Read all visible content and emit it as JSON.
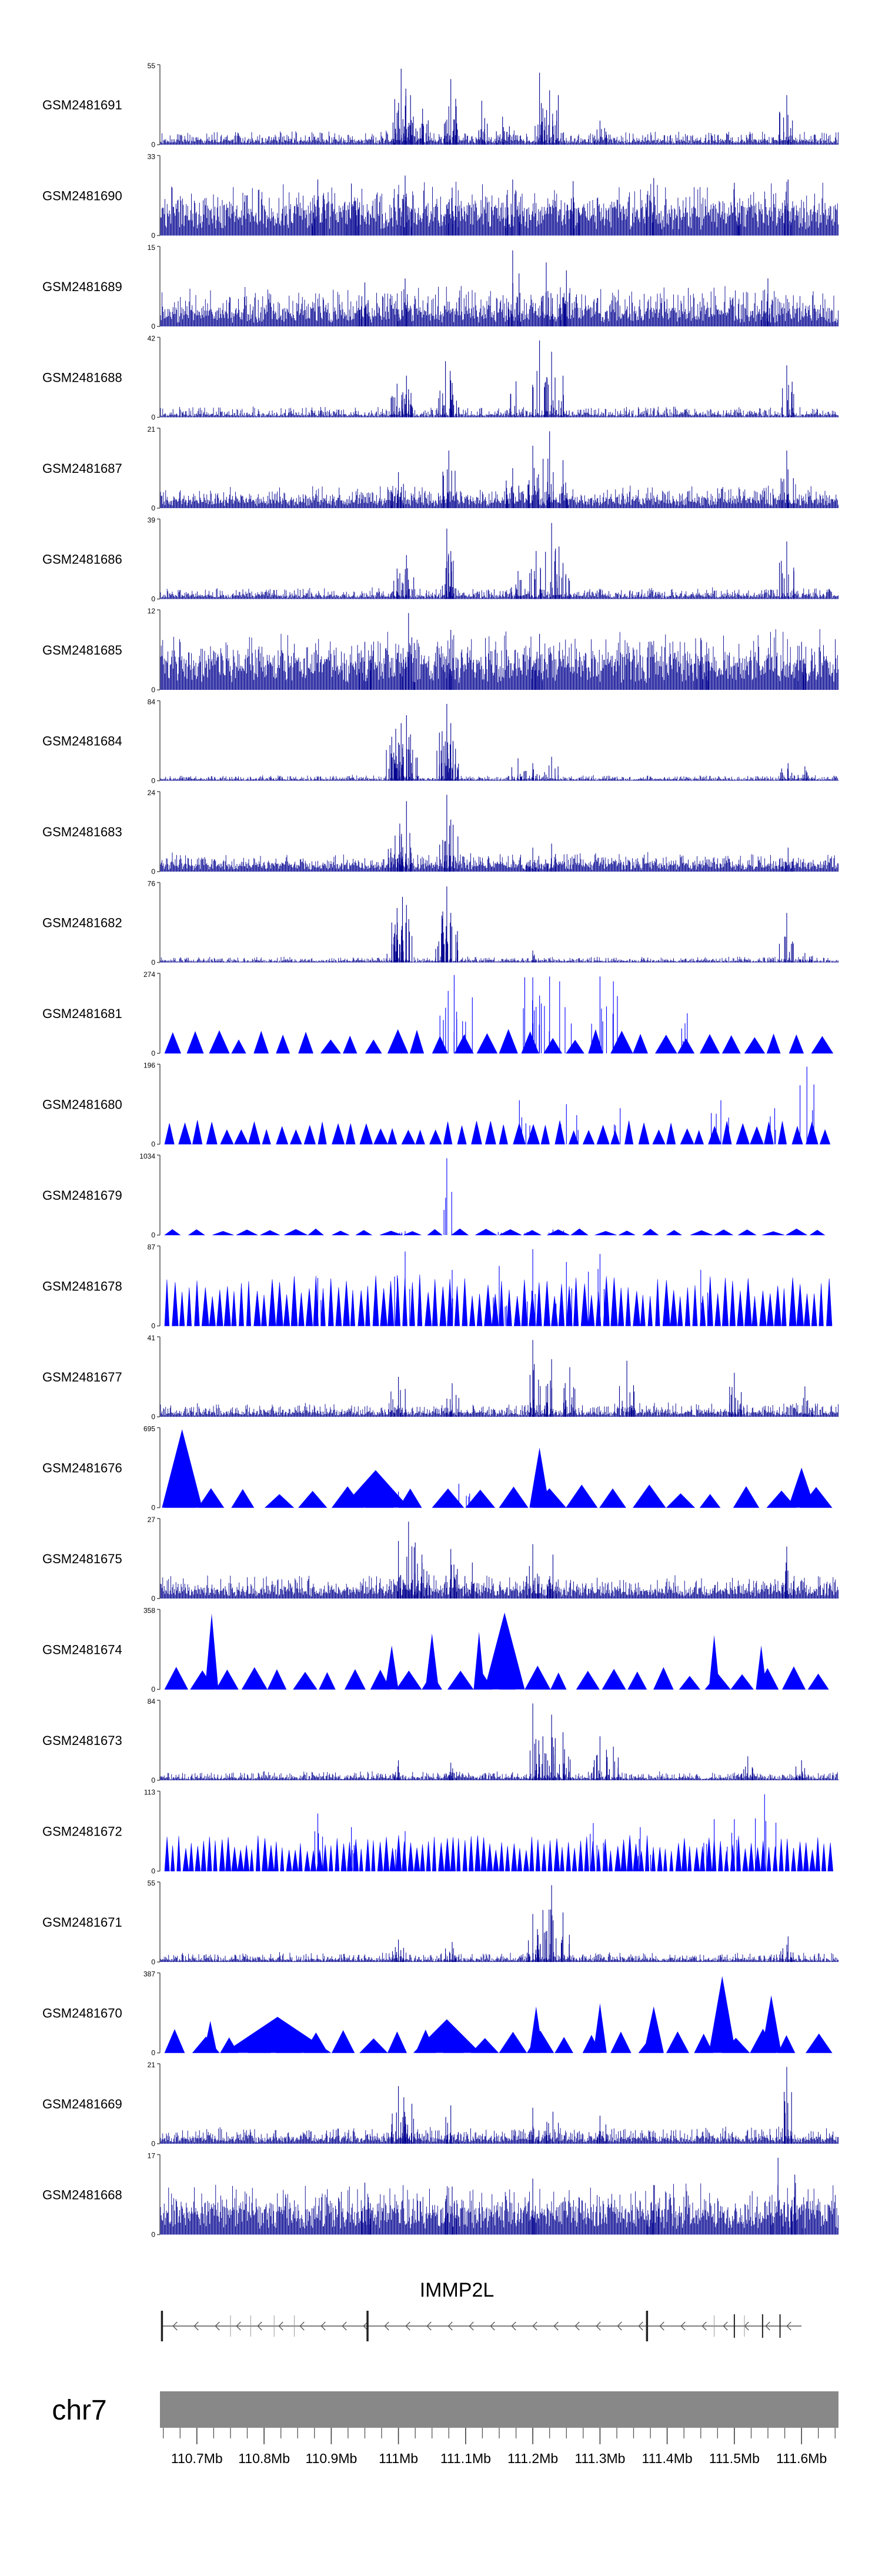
{
  "chart_data": {
    "type": "area",
    "chromosome_label": "chr7",
    "gene_label": "IMMP2L",
    "x_range_mb": [
      110.645,
      111.655
    ],
    "x_tick_labels": [
      "110.7Mb",
      "110.8Mb",
      "110.9Mb",
      "111Mb",
      "111.1Mb",
      "111.2Mb",
      "111.3Mb",
      "111.4Mb",
      "111.5Mb",
      "111.6Mb"
    ],
    "x_tick_values": [
      110.7,
      110.8,
      110.9,
      111.0,
      111.1,
      111.2,
      111.3,
      111.4,
      111.5,
      111.6
    ],
    "colors": {
      "signal": "#000090",
      "signal_sparse": "#0000ff",
      "chrom": "#888888",
      "gene": "#555555"
    },
    "tracks": [
      {
        "name": "GSM2481691",
        "ymax": 55,
        "style": "dense",
        "seed": 11,
        "base": 0.05,
        "noise": 0.12,
        "peaks": [
          [
            111.004,
            0.95
          ],
          [
            111.011,
            0.7
          ],
          [
            111.018,
            0.62
          ],
          [
            111.036,
            0.45
          ],
          [
            111.078,
            0.82
          ],
          [
            111.086,
            0.48
          ],
          [
            111.124,
            0.55
          ],
          [
            111.155,
            0.35
          ],
          [
            111.21,
            0.9
          ],
          [
            111.225,
            0.68
          ],
          [
            111.238,
            0.62
          ],
          [
            111.578,
            0.62
          ],
          [
            110.998,
            0.4
          ],
          [
            111.3,
            0.3
          ]
        ]
      },
      {
        "name": "GSM2481690",
        "ymax": 33,
        "style": "dense",
        "seed": 12,
        "base": 0.3,
        "noise": 0.32,
        "peaks": [
          [
            110.88,
            0.7
          ],
          [
            110.93,
            0.65
          ],
          [
            111.01,
            0.75
          ],
          [
            111.08,
            0.6
          ],
          [
            111.17,
            0.7
          ],
          [
            111.26,
            0.68
          ],
          [
            111.38,
            0.72
          ],
          [
            111.5,
            0.66
          ],
          [
            111.58,
            0.7
          ]
        ]
      },
      {
        "name": "GSM2481689",
        "ymax": 15,
        "style": "dense",
        "seed": 13,
        "base": 0.18,
        "noise": 0.3,
        "peaks": [
          [
            111.17,
            0.95
          ],
          [
            111.22,
            0.8
          ],
          [
            111.25,
            0.7
          ],
          [
            111.01,
            0.6
          ],
          [
            110.95,
            0.55
          ],
          [
            111.55,
            0.6
          ]
        ]
      },
      {
        "name": "GSM2481688",
        "ymax": 42,
        "style": "dense",
        "seed": 14,
        "base": 0.03,
        "noise": 0.1,
        "peaks": [
          [
            110.998,
            0.42
          ],
          [
            111.012,
            0.52
          ],
          [
            111.07,
            0.7
          ],
          [
            111.077,
            0.58
          ],
          [
            111.175,
            0.45
          ],
          [
            111.21,
            0.96
          ],
          [
            111.228,
            0.82
          ],
          [
            111.245,
            0.52
          ],
          [
            111.578,
            0.65
          ],
          [
            111.015,
            0.35
          ]
        ]
      },
      {
        "name": "GSM2481687",
        "ymax": 21,
        "style": "dense",
        "seed": 15,
        "base": 0.1,
        "noise": 0.18,
        "peaks": [
          [
            111.0,
            0.45
          ],
          [
            111.075,
            0.72
          ],
          [
            111.2,
            0.78
          ],
          [
            111.225,
            0.96
          ],
          [
            111.245,
            0.6
          ],
          [
            111.578,
            0.72
          ],
          [
            111.17,
            0.5
          ]
        ]
      },
      {
        "name": "GSM2481686",
        "ymax": 39,
        "style": "dense",
        "seed": 16,
        "base": 0.04,
        "noise": 0.1,
        "peaks": [
          [
            110.998,
            0.38
          ],
          [
            111.012,
            0.55
          ],
          [
            111.072,
            0.88
          ],
          [
            111.078,
            0.6
          ],
          [
            111.178,
            0.35
          ],
          [
            111.205,
            0.6
          ],
          [
            111.228,
            0.95
          ],
          [
            111.245,
            0.45
          ],
          [
            111.578,
            0.72
          ]
        ]
      },
      {
        "name": "GSM2481685",
        "ymax": 12,
        "style": "dense",
        "seed": 17,
        "base": 0.35,
        "noise": 0.35,
        "peaks": [
          [
            111.015,
            0.96
          ],
          [
            111.078,
            0.75
          ],
          [
            111.21,
            0.7
          ],
          [
            110.95,
            0.6
          ],
          [
            111.45,
            0.65
          ],
          [
            111.6,
            0.6
          ]
        ]
      },
      {
        "name": "GSM2481684",
        "ymax": 84,
        "style": "dense",
        "seed": 18,
        "base": 0.02,
        "noise": 0.05,
        "peaks": [
          [
            110.99,
            0.55
          ],
          [
            110.996,
            0.65
          ],
          [
            111.004,
            0.72
          ],
          [
            111.012,
            0.82
          ],
          [
            111.018,
            0.58
          ],
          [
            111.065,
            0.62
          ],
          [
            111.072,
            0.96
          ],
          [
            111.078,
            0.72
          ],
          [
            111.085,
            0.4
          ],
          [
            111.178,
            0.28
          ],
          [
            111.2,
            0.22
          ],
          [
            111.228,
            0.3
          ],
          [
            111.58,
            0.22
          ],
          [
            111.605,
            0.18
          ]
        ]
      },
      {
        "name": "GSM2481683",
        "ymax": 24,
        "style": "dense",
        "seed": 19,
        "base": 0.08,
        "noise": 0.15,
        "peaks": [
          [
            110.995,
            0.45
          ],
          [
            111.002,
            0.6
          ],
          [
            111.012,
            0.88
          ],
          [
            111.072,
            0.96
          ],
          [
            111.078,
            0.65
          ],
          [
            111.2,
            0.3
          ],
          [
            111.228,
            0.35
          ],
          [
            111.58,
            0.3
          ]
        ]
      },
      {
        "name": "GSM2481682",
        "ymax": 76,
        "style": "dense",
        "seed": 20,
        "base": 0.02,
        "noise": 0.05,
        "peaks": [
          [
            110.99,
            0.5
          ],
          [
            110.998,
            0.68
          ],
          [
            111.006,
            0.82
          ],
          [
            111.012,
            0.72
          ],
          [
            111.065,
            0.55
          ],
          [
            111.072,
            0.95
          ],
          [
            111.078,
            0.62
          ],
          [
            111.2,
            0.15
          ],
          [
            111.578,
            0.62
          ],
          [
            111.605,
            0.12
          ]
        ]
      },
      {
        "name": "GSM2481681",
        "ymax": 274,
        "style": "sparse",
        "seed": 21,
        "tri": 30,
        "peaks": [
          [
            111.074,
            0.78
          ],
          [
            111.083,
            0.98
          ],
          [
            111.11,
            0.7
          ],
          [
            111.188,
            0.95
          ],
          [
            111.2,
            0.95
          ],
          [
            111.225,
            0.96
          ],
          [
            111.24,
            0.9
          ],
          [
            111.3,
            0.96
          ],
          [
            111.32,
            0.9
          ],
          [
            111.43,
            0.5
          ]
        ]
      },
      {
        "name": "GSM2481680",
        "ymax": 196,
        "style": "sparse",
        "seed": 22,
        "tri": 48,
        "peaks": [
          [
            111.608,
            0.97
          ],
          [
            111.18,
            0.55
          ],
          [
            111.25,
            0.5
          ],
          [
            111.33,
            0.45
          ],
          [
            111.48,
            0.55
          ],
          [
            111.56,
            0.45
          ]
        ]
      },
      {
        "name": "GSM2481679",
        "ymax": 1034,
        "style": "sparse",
        "seed": 23,
        "tri": 28,
        "triScale": 0.08,
        "peaks": [
          [
            111.072,
            0.96
          ],
          [
            111.16,
            0.05
          ],
          [
            111.2,
            0.06
          ],
          [
            111.23,
            0.07
          ],
          [
            111.01,
            0.05
          ]
        ]
      },
      {
        "name": "GSM2481678",
        "ymax": 87,
        "style": "sparse",
        "seed": 24,
        "tri": 90,
        "triScale": 0.65,
        "peaks": [
          [
            111.01,
            0.93
          ],
          [
            111.2,
            0.96
          ],
          [
            111.3,
            0.9
          ],
          [
            111.15,
            0.75
          ],
          [
            111.25,
            0.8
          ],
          [
            111.08,
            0.7
          ],
          [
            110.88,
            0.6
          ],
          [
            111.45,
            0.7
          ]
        ]
      },
      {
        "name": "GSM2481677",
        "ymax": 41,
        "style": "dense",
        "seed": 25,
        "base": 0.05,
        "noise": 0.12,
        "peaks": [
          [
            111.2,
            0.96
          ],
          [
            111.228,
            0.72
          ],
          [
            111.255,
            0.62
          ],
          [
            111.34,
            0.7
          ],
          [
            111.0,
            0.5
          ],
          [
            111.08,
            0.42
          ],
          [
            111.5,
            0.55
          ],
          [
            111.605,
            0.38
          ]
        ]
      },
      {
        "name": "GSM2481676",
        "ymax": 695,
        "style": "sparse",
        "seed": 26,
        "tri": 20,
        "bigTri": [
          [
            110.678,
            0.98,
            0.03
          ],
          [
            110.966,
            0.47,
            0.05
          ],
          [
            111.21,
            0.75,
            0.015
          ],
          [
            111.6,
            0.5,
            0.02
          ]
        ],
        "peaks": [
          [
            111.0,
            0.2
          ],
          [
            111.09,
            0.3
          ]
        ]
      },
      {
        "name": "GSM2481675",
        "ymax": 27,
        "style": "dense",
        "seed": 27,
        "base": 0.1,
        "noise": 0.18,
        "peaks": [
          [
            111.0,
            0.72
          ],
          [
            111.015,
            0.96
          ],
          [
            111.025,
            0.7
          ],
          [
            111.035,
            0.55
          ],
          [
            111.078,
            0.62
          ],
          [
            111.11,
            0.45
          ],
          [
            111.2,
            0.68
          ],
          [
            111.23,
            0.55
          ],
          [
            111.578,
            0.65
          ]
        ]
      },
      {
        "name": "GSM2481674",
        "ymax": 358,
        "style": "sparse",
        "seed": 27,
        "tri": 26,
        "bigTri": [
          [
            110.722,
            0.95,
            0.01
          ],
          [
            111.158,
            0.96,
            0.03
          ],
          [
            111.05,
            0.7,
            0.01
          ],
          [
            111.12,
            0.72,
            0.008
          ],
          [
            111.47,
            0.68,
            0.008
          ],
          [
            111.54,
            0.55,
            0.008
          ],
          [
            110.99,
            0.55,
            0.01
          ]
        ],
        "peaks": []
      },
      {
        "name": "GSM2481673",
        "ymax": 84,
        "style": "dense",
        "seed": 29,
        "base": 0.03,
        "noise": 0.08,
        "peaks": [
          [
            111.2,
            0.96
          ],
          [
            111.215,
            0.55
          ],
          [
            111.228,
            0.82
          ],
          [
            111.245,
            0.6
          ],
          [
            111.3,
            0.55
          ],
          [
            111.32,
            0.42
          ],
          [
            111.0,
            0.25
          ],
          [
            111.078,
            0.22
          ],
          [
            111.52,
            0.3
          ],
          [
            111.6,
            0.25
          ]
        ]
      },
      {
        "name": "GSM2481672",
        "ymax": 113,
        "style": "sparse",
        "seed": 30,
        "tri": 110,
        "triScale": 0.45,
        "peaks": [
          [
            111.545,
            0.96
          ],
          [
            110.88,
            0.72
          ],
          [
            110.93,
            0.55
          ],
          [
            111.29,
            0.6
          ],
          [
            111.36,
            0.55
          ],
          [
            111.47,
            0.65
          ],
          [
            111.01,
            0.5
          ],
          [
            111.5,
            0.65
          ]
        ]
      },
      {
        "name": "GSM2481671",
        "ymax": 55,
        "style": "dense",
        "seed": 31,
        "base": 0.03,
        "noise": 0.09,
        "peaks": [
          [
            111.2,
            0.6
          ],
          [
            111.215,
            0.65
          ],
          [
            111.228,
            0.96
          ],
          [
            111.245,
            0.62
          ],
          [
            111.0,
            0.28
          ],
          [
            111.08,
            0.25
          ],
          [
            111.58,
            0.32
          ]
        ]
      },
      {
        "name": "GSM2481670",
        "ymax": 387,
        "style": "sparse",
        "seed": 32,
        "tri": 24,
        "bigTri": [
          [
            111.482,
            0.96,
            0.02
          ],
          [
            111.555,
            0.72,
            0.015
          ],
          [
            111.38,
            0.58,
            0.015
          ],
          [
            111.072,
            0.42,
            0.05
          ],
          [
            110.82,
            0.45,
            0.08
          ],
          [
            110.72,
            0.4,
            0.01
          ],
          [
            111.205,
            0.58,
            0.01
          ],
          [
            111.3,
            0.62,
            0.01
          ]
        ],
        "peaks": []
      },
      {
        "name": "GSM2481669",
        "ymax": 21,
        "style": "dense",
        "seed": 33,
        "base": 0.06,
        "noise": 0.15,
        "peaks": [
          [
            111.0,
            0.72
          ],
          [
            111.008,
            0.58
          ],
          [
            111.02,
            0.5
          ],
          [
            111.078,
            0.48
          ],
          [
            111.2,
            0.45
          ],
          [
            111.23,
            0.4
          ],
          [
            111.578,
            0.96
          ],
          [
            111.3,
            0.35
          ]
        ]
      },
      {
        "name": "GSM2481668",
        "ymax": 17,
        "style": "dense",
        "seed": 34,
        "base": 0.28,
        "noise": 0.32,
        "peaks": [
          [
            111.565,
            0.96
          ],
          [
            111.59,
            0.75
          ],
          [
            110.95,
            0.65
          ],
          [
            111.2,
            0.7
          ],
          [
            111.08,
            0.6
          ],
          [
            111.38,
            0.62
          ]
        ]
      }
    ],
    "gene_model": {
      "strand": "-",
      "start_mb": 110.647,
      "end_mb": 111.6,
      "exons_mb": [
        110.648,
        110.954,
        111.37,
        111.5,
        111.542,
        111.568
      ]
    }
  }
}
